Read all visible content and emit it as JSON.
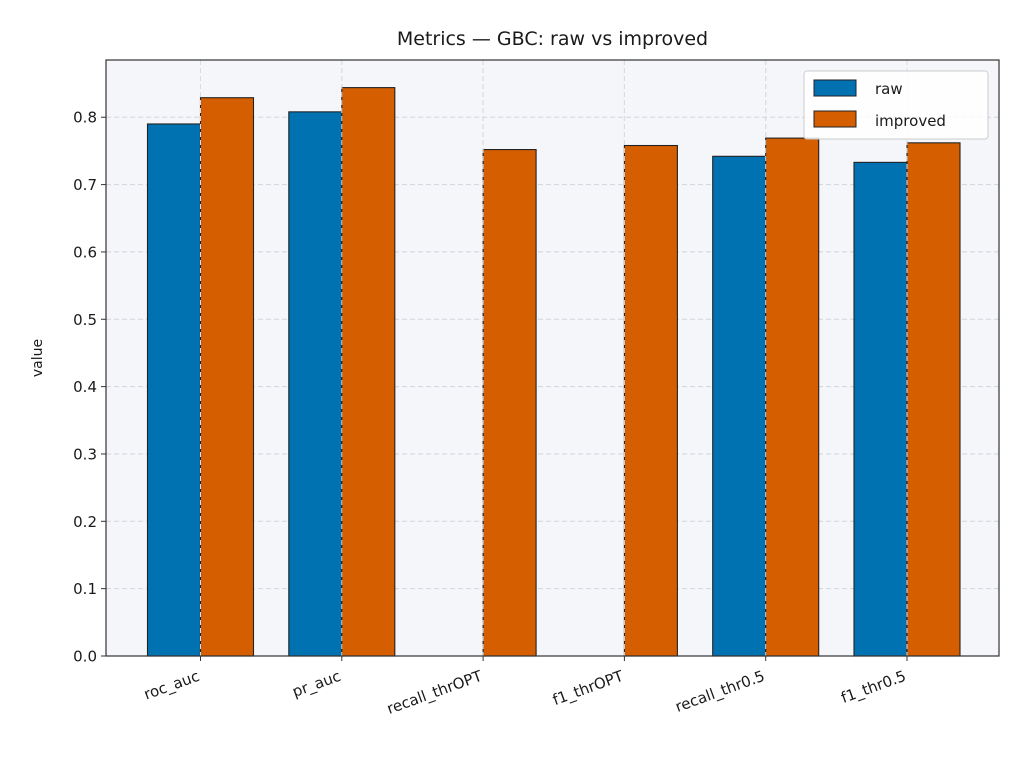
{
  "chart_data": {
    "type": "bar",
    "title": "Metrics — GBC: raw vs improved",
    "xlabel": "",
    "ylabel": "value",
    "categories": [
      "roc_auc",
      "pr_auc",
      "recall_thrOPT",
      "f1_thrOPT",
      "recall_thr0.5",
      "f1_thr0.5"
    ],
    "series": [
      {
        "name": "raw",
        "values": [
          0.79,
          0.808,
          0.0,
          0.0,
          0.742,
          0.733
        ],
        "color": "#0072b2"
      },
      {
        "name": "improved",
        "values": [
          0.829,
          0.844,
          0.752,
          0.758,
          0.769,
          0.762
        ],
        "color": "#d55e00"
      }
    ],
    "ylim": [
      0,
      0.885
    ],
    "yticks": [
      "0.0",
      "0.1",
      "0.2",
      "0.3",
      "0.4",
      "0.5",
      "0.6",
      "0.7",
      "0.8"
    ],
    "grid": true,
    "legend_position": "top-right",
    "background": "#f5f6fa",
    "edge_color": "#222222",
    "grid_color": "#cfd3dc"
  }
}
